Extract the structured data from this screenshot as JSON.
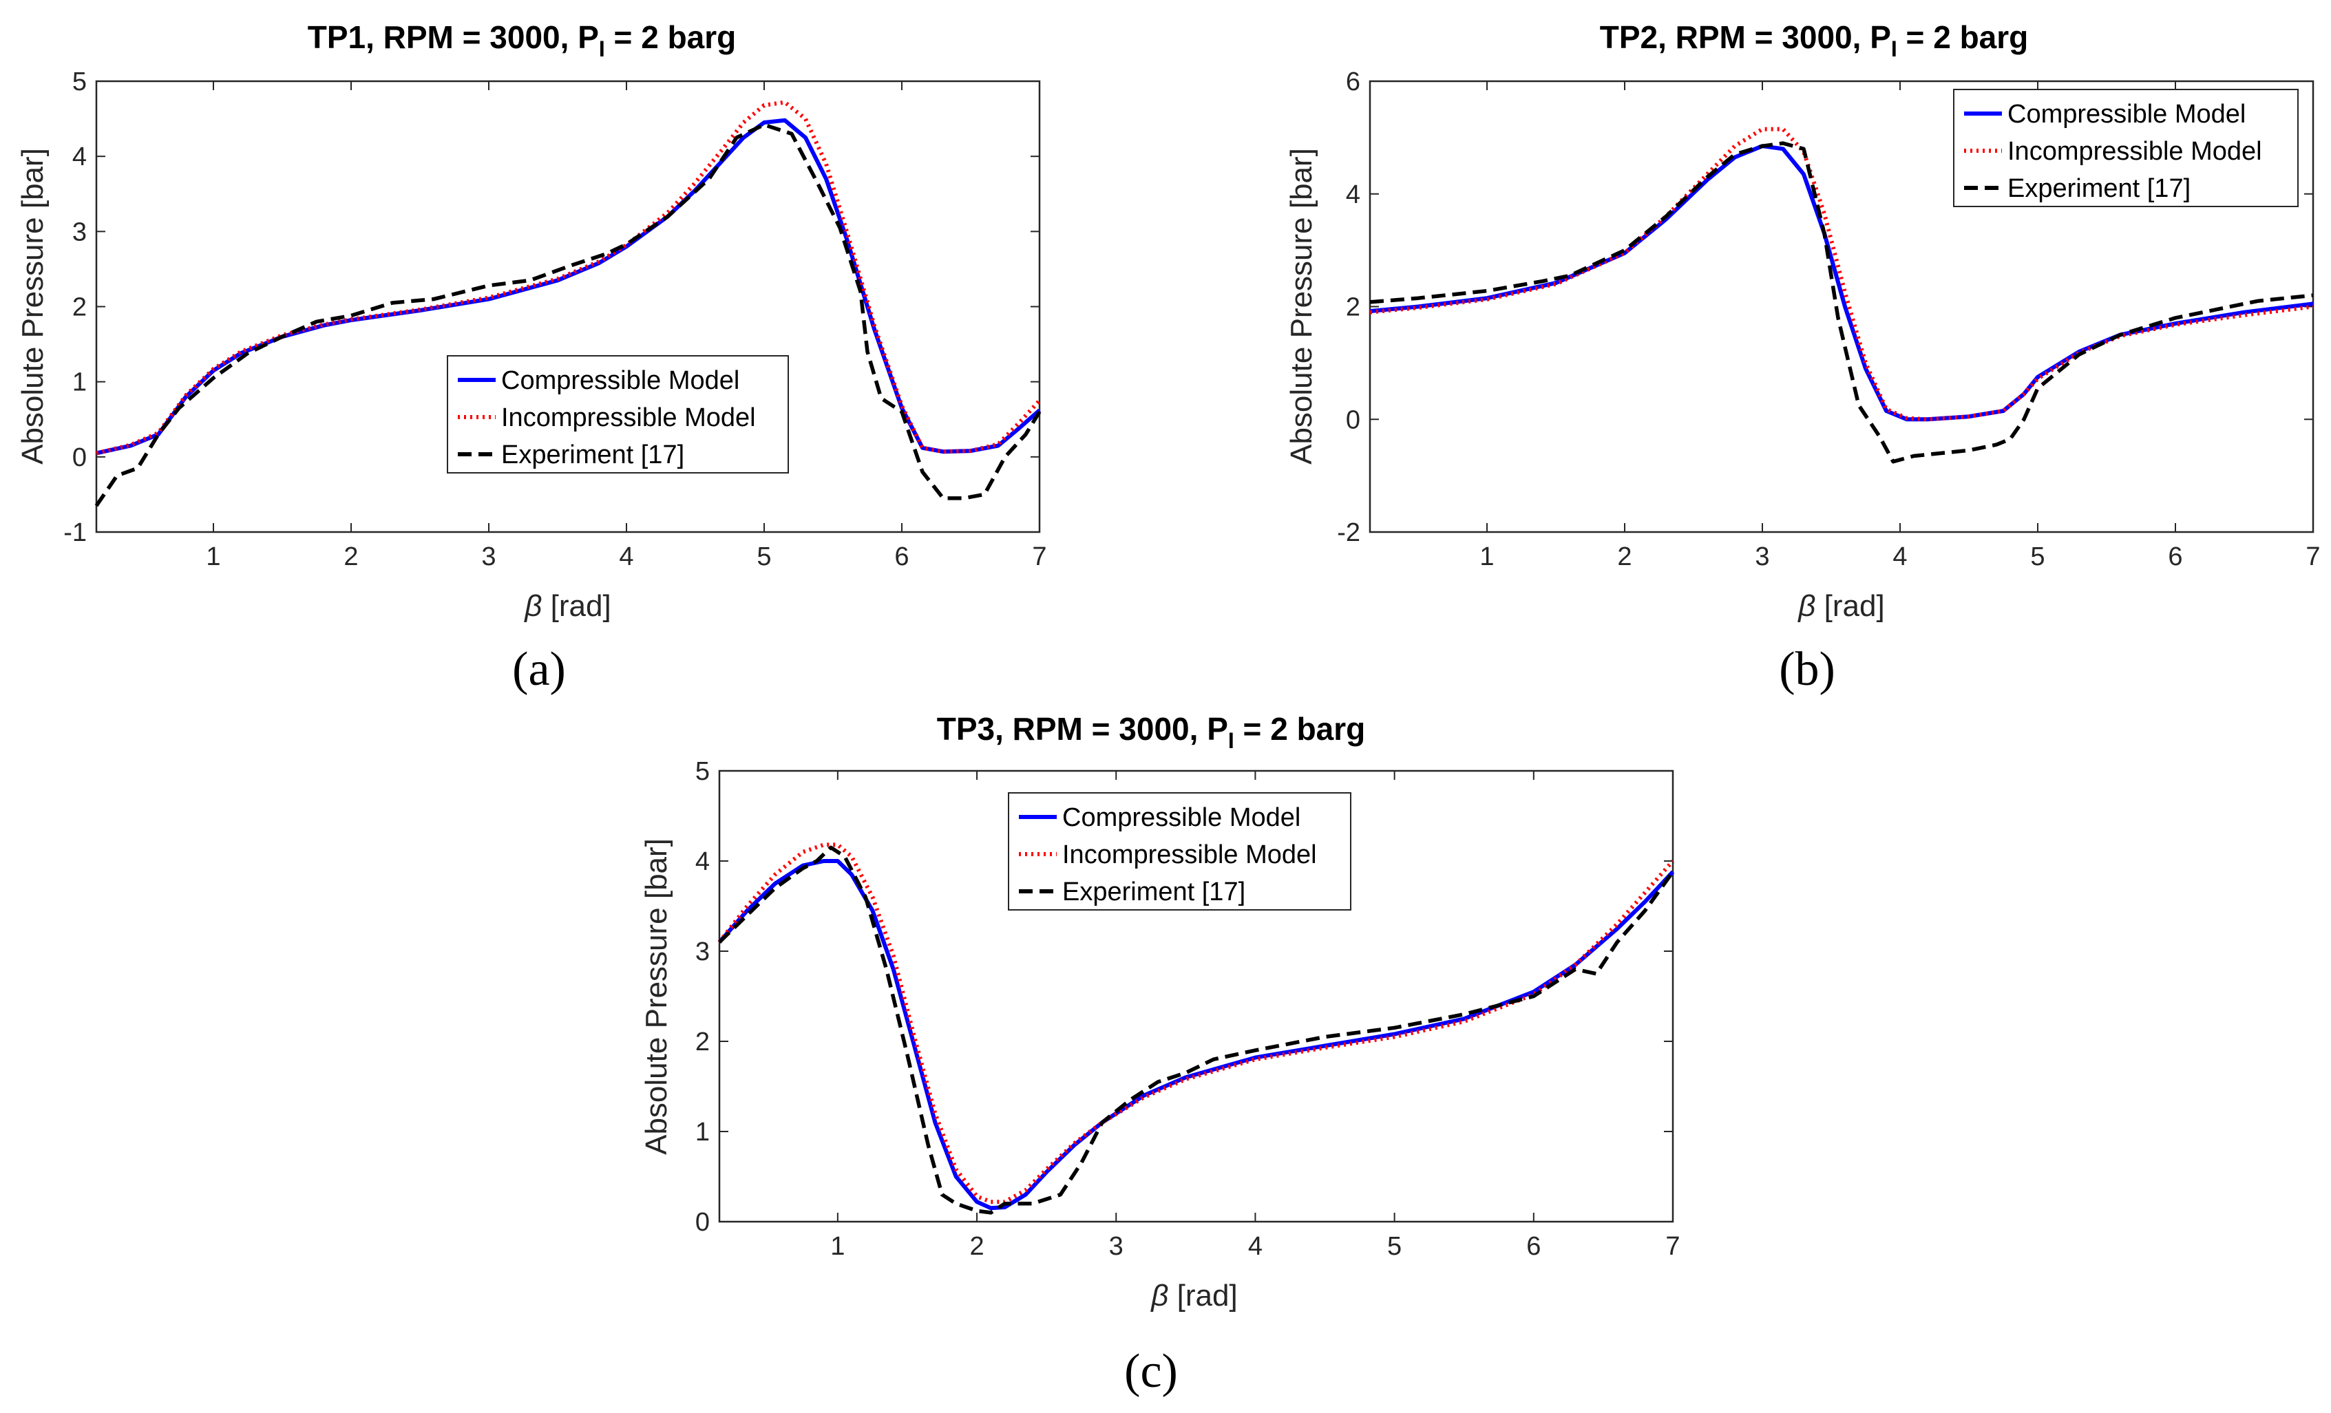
{
  "colors": {
    "compressible": "#0000ff",
    "incompressible": "#ff0000",
    "experiment": "#000000",
    "axis": "#262626"
  },
  "chart_data": [
    {
      "type": "line",
      "panel": "(a)",
      "title": "TP1, RPM = 3000, P",
      "title_sub": "I",
      "title_end": " = 2 barg",
      "xlabel_symbol": "β",
      "xlabel": " [rad]",
      "ylabel": "Absolute Pressure [bar]",
      "xlim": [
        0.15,
        7
      ],
      "ylim": [
        -1,
        5
      ],
      "xticks": [
        1,
        2,
        3,
        4,
        5,
        6,
        7
      ],
      "yticks": [
        -1,
        0,
        1,
        2,
        3,
        4,
        5
      ],
      "legend_position": "center-right",
      "series": [
        {
          "name": "Compressible Model",
          "x": [
            0.15,
            0.4,
            0.6,
            0.8,
            1.0,
            1.2,
            1.5,
            1.8,
            2.0,
            2.5,
            3.0,
            3.5,
            3.8,
            4.0,
            4.3,
            4.5,
            4.7,
            4.85,
            5.0,
            5.15,
            5.3,
            5.45,
            5.6,
            5.8,
            6.0,
            6.15,
            6.3,
            6.5,
            6.7,
            6.85,
            7.0
          ],
          "y": [
            0.05,
            0.15,
            0.3,
            0.8,
            1.15,
            1.38,
            1.6,
            1.75,
            1.82,
            1.95,
            2.1,
            2.35,
            2.58,
            2.8,
            3.2,
            3.55,
            3.95,
            4.25,
            4.45,
            4.48,
            4.25,
            3.7,
            2.9,
            1.7,
            0.65,
            0.12,
            0.07,
            0.08,
            0.15,
            0.38,
            0.62
          ]
        },
        {
          "name": "Incompressible Model",
          "x": [
            0.15,
            0.4,
            0.6,
            0.8,
            1.0,
            1.2,
            1.5,
            1.8,
            2.0,
            2.5,
            3.0,
            3.5,
            3.8,
            4.0,
            4.3,
            4.5,
            4.7,
            4.85,
            5.0,
            5.15,
            5.3,
            5.45,
            5.6,
            5.8,
            6.0,
            6.15,
            6.3,
            6.5,
            6.7,
            6.85,
            7.0
          ],
          "y": [
            0.05,
            0.16,
            0.32,
            0.82,
            1.17,
            1.4,
            1.62,
            1.76,
            1.83,
            1.96,
            2.12,
            2.37,
            2.6,
            2.82,
            3.25,
            3.65,
            4.1,
            4.45,
            4.68,
            4.72,
            4.5,
            3.9,
            3.0,
            1.75,
            0.68,
            0.12,
            0.07,
            0.08,
            0.17,
            0.45,
            0.75
          ]
        },
        {
          "name": "Experiment [17]",
          "x": [
            0.15,
            0.3,
            0.45,
            0.6,
            0.75,
            1.0,
            1.25,
            1.5,
            1.75,
            2.0,
            2.3,
            2.6,
            3.0,
            3.3,
            3.6,
            3.85,
            4.0,
            4.3,
            4.6,
            4.8,
            5.0,
            5.2,
            5.4,
            5.55,
            5.7,
            5.75,
            5.85,
            6.0,
            6.15,
            6.3,
            6.45,
            6.6,
            6.75,
            6.9,
            7.0
          ],
          "y": [
            -0.65,
            -0.25,
            -0.15,
            0.3,
            0.65,
            1.05,
            1.38,
            1.6,
            1.8,
            1.88,
            2.05,
            2.1,
            2.28,
            2.35,
            2.55,
            2.7,
            2.83,
            3.2,
            3.7,
            4.25,
            4.42,
            4.3,
            3.6,
            3.05,
            2.2,
            1.4,
            0.78,
            0.6,
            -0.2,
            -0.55,
            -0.55,
            -0.5,
            0.0,
            0.3,
            0.6
          ]
        }
      ]
    },
    {
      "type": "line",
      "panel": "(b)",
      "title": "TP2, RPM = 3000, P",
      "title_sub": "I",
      "title_end": " = 2 barg",
      "xlabel_symbol": "β",
      "xlabel": " [rad]",
      "ylabel": "Absolute Pressure [bar]",
      "xlim": [
        0.15,
        7
      ],
      "ylim": [
        -2,
        6
      ],
      "xticks": [
        1,
        2,
        3,
        4,
        5,
        6,
        7
      ],
      "yticks": [
        -2,
        0,
        2,
        4,
        6
      ],
      "legend_position": "top-right",
      "series": [
        {
          "name": "Compressible Model",
          "x": [
            0.15,
            0.5,
            1.0,
            1.5,
            2.0,
            2.3,
            2.6,
            2.8,
            3.0,
            3.15,
            3.3,
            3.45,
            3.6,
            3.75,
            3.9,
            4.05,
            4.2,
            4.5,
            4.75,
            4.9,
            5.0,
            5.3,
            5.6,
            6.0,
            6.5,
            7.0
          ],
          "y": [
            1.92,
            2.0,
            2.15,
            2.42,
            2.95,
            3.55,
            4.25,
            4.65,
            4.85,
            4.8,
            4.35,
            3.3,
            2.0,
            0.9,
            0.15,
            0.0,
            0.0,
            0.05,
            0.15,
            0.45,
            0.75,
            1.2,
            1.5,
            1.7,
            1.9,
            2.05
          ]
        },
        {
          "name": "Incompressible Model",
          "x": [
            0.15,
            0.5,
            1.0,
            1.5,
            2.0,
            2.3,
            2.6,
            2.8,
            3.0,
            3.15,
            3.3,
            3.45,
            3.6,
            3.75,
            3.9,
            4.05,
            4.2,
            4.5,
            4.75,
            4.9,
            5.0,
            5.3,
            5.6,
            6.0,
            6.5,
            7.0
          ],
          "y": [
            1.9,
            1.98,
            2.13,
            2.4,
            2.95,
            3.6,
            4.35,
            4.85,
            5.15,
            5.15,
            4.75,
            3.65,
            2.25,
            1.0,
            0.18,
            0.02,
            0.0,
            0.05,
            0.15,
            0.45,
            0.72,
            1.18,
            1.48,
            1.68,
            1.85,
            2.0
          ]
        },
        {
          "name": "Experiment [17]",
          "x": [
            0.15,
            0.5,
            1.0,
            1.4,
            1.6,
            2.0,
            2.3,
            2.6,
            2.8,
            3.0,
            3.15,
            3.3,
            3.45,
            3.55,
            3.7,
            3.85,
            3.95,
            4.1,
            4.3,
            4.5,
            4.7,
            4.8,
            4.9,
            5.0,
            5.3,
            5.6,
            6.0,
            6.3,
            6.6,
            7.0
          ],
          "y": [
            2.08,
            2.15,
            2.28,
            2.45,
            2.55,
            3.0,
            3.6,
            4.3,
            4.7,
            4.85,
            4.9,
            4.8,
            3.3,
            1.8,
            0.25,
            -0.3,
            -0.75,
            -0.65,
            -0.6,
            -0.55,
            -0.45,
            -0.35,
            0.0,
            0.55,
            1.15,
            1.5,
            1.8,
            1.95,
            2.1,
            2.2
          ]
        }
      ]
    },
    {
      "type": "line",
      "panel": "(c)",
      "title": "TP3, RPM = 3000, P",
      "title_sub": "I",
      "title_end": " = 2 barg",
      "xlabel_symbol": "β",
      "xlabel": " [rad]",
      "ylabel": "Absolute Pressure [bar]",
      "xlim": [
        0.15,
        7
      ],
      "ylim": [
        0,
        5
      ],
      "xticks": [
        1,
        2,
        3,
        4,
        5,
        6,
        7
      ],
      "yticks": [
        0,
        1,
        2,
        3,
        4,
        5
      ],
      "legend_position": "top-left",
      "series": [
        {
          "name": "Compressible Model",
          "x": [
            0.15,
            0.35,
            0.55,
            0.75,
            0.9,
            1.0,
            1.1,
            1.25,
            1.4,
            1.55,
            1.7,
            1.85,
            2.0,
            2.1,
            2.2,
            2.35,
            2.5,
            2.7,
            2.9,
            3.2,
            3.5,
            4.0,
            4.5,
            5.0,
            5.5,
            6.0,
            6.3,
            6.6,
            6.8,
            7.0
          ],
          "y": [
            3.1,
            3.45,
            3.75,
            3.95,
            4.0,
            4.0,
            3.85,
            3.45,
            2.8,
            1.95,
            1.1,
            0.5,
            0.22,
            0.15,
            0.16,
            0.3,
            0.55,
            0.85,
            1.1,
            1.4,
            1.6,
            1.82,
            1.95,
            2.08,
            2.25,
            2.55,
            2.85,
            3.25,
            3.55,
            3.88
          ]
        },
        {
          "name": "Incompressible Model",
          "x": [
            0.15,
            0.35,
            0.55,
            0.75,
            0.9,
            1.0,
            1.1,
            1.25,
            1.4,
            1.55,
            1.7,
            1.85,
            2.0,
            2.1,
            2.2,
            2.35,
            2.5,
            2.7,
            2.9,
            3.2,
            3.5,
            4.0,
            4.5,
            5.0,
            5.5,
            6.0,
            6.3,
            6.6,
            6.8,
            7.0
          ],
          "y": [
            3.1,
            3.5,
            3.85,
            4.1,
            4.18,
            4.18,
            4.05,
            3.6,
            2.95,
            2.05,
            1.2,
            0.58,
            0.28,
            0.22,
            0.22,
            0.35,
            0.58,
            0.87,
            1.1,
            1.38,
            1.58,
            1.8,
            1.93,
            2.05,
            2.22,
            2.52,
            2.85,
            3.3,
            3.65,
            4.0
          ]
        },
        {
          "name": "Experiment [17]",
          "x": [
            0.15,
            0.35,
            0.55,
            0.75,
            0.85,
            0.95,
            1.05,
            1.2,
            1.35,
            1.5,
            1.65,
            1.75,
            1.85,
            2.0,
            2.1,
            2.2,
            2.4,
            2.6,
            2.75,
            2.9,
            3.1,
            3.3,
            3.5,
            3.7,
            4.0,
            4.5,
            5.0,
            5.5,
            6.0,
            6.3,
            6.45,
            6.6,
            6.8,
            7.0
          ],
          "y": [
            3.1,
            3.4,
            3.7,
            3.92,
            4.0,
            4.15,
            4.05,
            3.6,
            2.8,
            1.85,
            0.85,
            0.3,
            0.2,
            0.12,
            0.1,
            0.2,
            0.2,
            0.3,
            0.65,
            1.1,
            1.35,
            1.55,
            1.65,
            1.8,
            1.9,
            2.05,
            2.15,
            2.3,
            2.5,
            2.8,
            2.75,
            3.1,
            3.45,
            3.88
          ]
        }
      ]
    }
  ]
}
